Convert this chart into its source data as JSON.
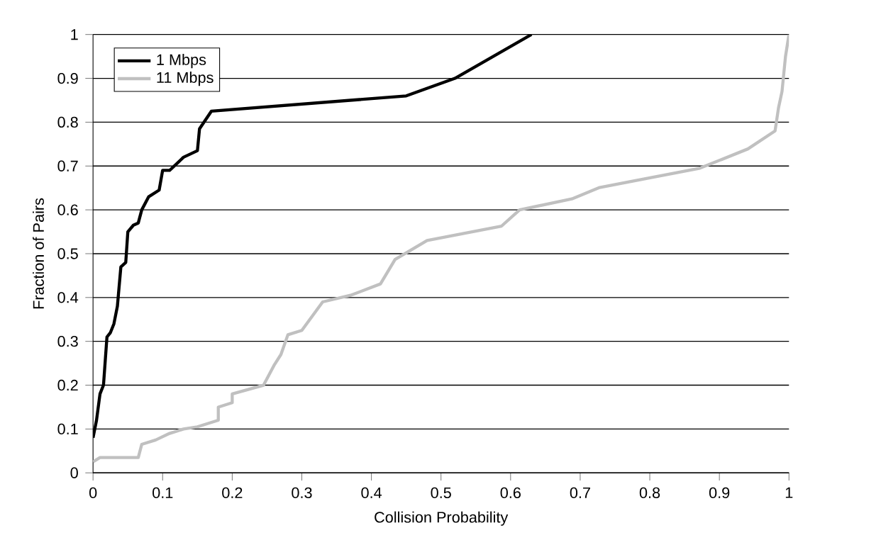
{
  "chart_data": {
    "type": "line",
    "xlabel": "Collision Probability",
    "ylabel": "Fraction of Pairs",
    "xlim": [
      0,
      1
    ],
    "ylim": [
      0,
      1
    ],
    "xticks": [
      0,
      0.1,
      0.2,
      0.3,
      0.4,
      0.5,
      0.6,
      0.7,
      0.8,
      0.9,
      1
    ],
    "yticks": [
      0,
      0.1,
      0.2,
      0.3,
      0.4,
      0.5,
      0.6,
      0.7,
      0.8,
      0.9,
      1
    ],
    "grid": "y",
    "legend": "top left",
    "marker": "none",
    "line_style": "solid",
    "series": [
      {
        "name": "1 Mbps",
        "color": "#000000",
        "x": [
          0,
          0.005,
          0.01,
          0.015,
          0.02,
          0.025,
          0.03,
          0.035,
          0.04,
          0.047,
          0.05,
          0.058,
          0.065,
          0.07,
          0.08,
          0.095,
          0.1,
          0.11,
          0.13,
          0.15,
          0.153,
          0.17,
          0.45,
          0.52,
          0.63
        ],
        "values": [
          0.08,
          0.12,
          0.18,
          0.2,
          0.31,
          0.32,
          0.34,
          0.38,
          0.47,
          0.48,
          0.55,
          0.565,
          0.57,
          0.6,
          0.63,
          0.645,
          0.69,
          0.69,
          0.72,
          0.735,
          0.785,
          0.825,
          0.86,
          0.9,
          1.0
        ]
      },
      {
        "name": "11 Mbps",
        "color": "#c0c0c0",
        "x": [
          0,
          0.01,
          0.065,
          0.07,
          0.09,
          0.11,
          0.13,
          0.15,
          0.17,
          0.18,
          0.18,
          0.2,
          0.2,
          0.245,
          0.26,
          0.27,
          0.28,
          0.3,
          0.33,
          0.37,
          0.413,
          0.434,
          0.48,
          0.587,
          0.613,
          0.688,
          0.728,
          0.872,
          0.941,
          0.98,
          0.985,
          0.99,
          0.995,
          1
        ],
        "values": [
          0.025,
          0.035,
          0.035,
          0.065,
          0.075,
          0.09,
          0.1,
          0.105,
          0.115,
          0.12,
          0.15,
          0.16,
          0.18,
          0.2,
          0.245,
          0.27,
          0.315,
          0.325,
          0.39,
          0.405,
          0.431,
          0.487,
          0.53,
          0.563,
          0.6,
          0.625,
          0.651,
          0.695,
          0.739,
          0.78,
          0.833,
          0.87,
          0.95,
          1.0
        ]
      }
    ]
  }
}
